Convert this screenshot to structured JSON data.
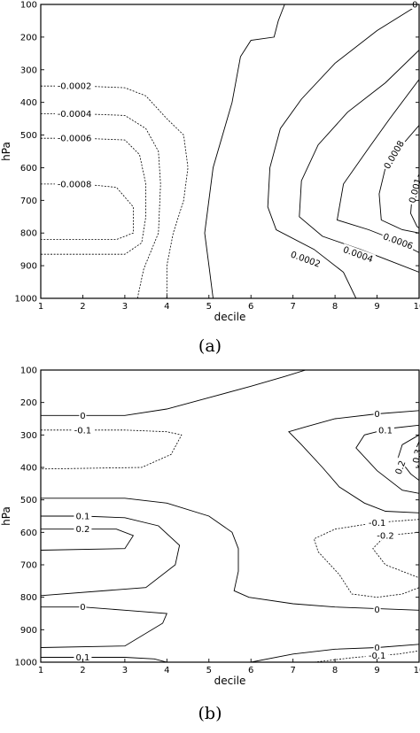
{
  "chart_data": [
    {
      "type": "contour",
      "panel_label": "(a)",
      "xlabel": "decile",
      "ylabel": "hPa",
      "x_ticks": [
        "1",
        "2",
        "3",
        "4",
        "5",
        "6",
        "7",
        "8",
        "9",
        "10"
      ],
      "y_ticks": [
        "100",
        "200",
        "300",
        "400",
        "500",
        "600",
        "700",
        "800",
        "900",
        "1000"
      ],
      "xlim": [
        1,
        10
      ],
      "ylim": [
        1000,
        100
      ],
      "y_inverted": true,
      "contours": [
        {
          "level": "-0.0002",
          "dashed": true,
          "points": [
            [
              1,
              350
            ],
            [
              2,
              350
            ],
            [
              3,
              355
            ],
            [
              3.5,
              380
            ],
            [
              4,
              450
            ],
            [
              4.4,
              500
            ],
            [
              4.5,
              600
            ],
            [
              4.4,
              700
            ],
            [
              4.15,
              800
            ],
            [
              4,
              900
            ],
            [
              4,
              1000
            ]
          ]
        },
        {
          "level": "-0.0004",
          "dashed": true,
          "points": [
            [
              1,
              435
            ],
            [
              2,
              435
            ],
            [
              3,
              440
            ],
            [
              3.5,
              480
            ],
            [
              3.8,
              550
            ],
            [
              3.85,
              650
            ],
            [
              3.8,
              800
            ],
            [
              3.45,
              910
            ],
            [
              3.3,
              1000
            ]
          ]
        },
        {
          "level": "-0.0006",
          "dashed": true,
          "points": [
            [
              1,
              510
            ],
            [
              2,
              510
            ],
            [
              3,
              515
            ],
            [
              3.35,
              560
            ],
            [
              3.5,
              650
            ],
            [
              3.5,
              750
            ],
            [
              3.4,
              830
            ],
            [
              3,
              865
            ],
            [
              1,
              865
            ]
          ]
        },
        {
          "level": "-0.0008",
          "dashed": true,
          "points": [
            [
              1,
              650
            ],
            [
              2,
              650
            ],
            [
              2.8,
              660
            ],
            [
              3.2,
              720
            ],
            [
              3.2,
              800
            ],
            [
              2.8,
              820
            ],
            [
              1,
              820
            ]
          ]
        },
        {
          "level": "0",
          "dashed": false,
          "points": [
            [
              6.8,
              100
            ],
            [
              6.65,
              150
            ],
            [
              6.55,
              200
            ],
            [
              6,
              210
            ],
            [
              5.75,
              260
            ],
            [
              5.55,
              400
            ],
            [
              5.1,
              600
            ],
            [
              4.9,
              800
            ],
            [
              5,
              900
            ],
            [
              5.1,
              1000
            ]
          ]
        },
        {
          "level": "0.0002",
          "dashed": false,
          "points": [
            [
              10,
              100
            ],
            [
              9,
              180
            ],
            [
              8,
              280
            ],
            [
              7.2,
              390
            ],
            [
              6.7,
              480
            ],
            [
              6.45,
              600
            ],
            [
              6.4,
              720
            ],
            [
              6.6,
              790
            ],
            [
              7.5,
              850
            ],
            [
              8.2,
              920
            ],
            [
              8.5,
              1000
            ]
          ]
        },
        {
          "level": "0.0004",
          "dashed": false,
          "points": [
            [
              10,
              240
            ],
            [
              9.2,
              340
            ],
            [
              8.3,
              430
            ],
            [
              7.6,
              530
            ],
            [
              7.2,
              640
            ],
            [
              7.15,
              750
            ],
            [
              7.7,
              810
            ],
            [
              8.6,
              850
            ],
            [
              9.2,
              880
            ],
            [
              10,
              920
            ]
          ]
        },
        {
          "level": "0.0006",
          "dashed": false,
          "points": [
            [
              10,
              330
            ],
            [
              9.3,
              450
            ],
            [
              8.8,
              540
            ],
            [
              8.2,
              650
            ],
            [
              8.05,
              760
            ],
            [
              8.8,
              790
            ],
            [
              9.4,
              820
            ],
            [
              10,
              860
            ]
          ]
        },
        {
          "level": "0.0008",
          "dashed": false,
          "points": [
            [
              10,
              470
            ],
            [
              9.6,
              530
            ],
            [
              9.2,
              600
            ],
            [
              9.05,
              680
            ],
            [
              9.1,
              760
            ],
            [
              9.6,
              790
            ],
            [
              10,
              800
            ]
          ]
        },
        {
          "level": "0.001",
          "dashed": false,
          "points": [
            [
              10,
              620
            ],
            [
              9.85,
              660
            ],
            [
              9.8,
              740
            ],
            [
              9.95,
              780
            ],
            [
              10,
              785
            ]
          ]
        }
      ],
      "labels": [
        {
          "text": "-0.0002",
          "x": 1.8,
          "p": 350
        },
        {
          "text": "-0.0004",
          "x": 1.8,
          "p": 435
        },
        {
          "text": "-0.0006",
          "x": 1.8,
          "p": 510
        },
        {
          "text": "-0.0008",
          "x": 1.8,
          "p": 650
        },
        {
          "text": "0.0008",
          "x": 9.4,
          "p": 560,
          "angle": -60
        },
        {
          "text": "0.0006",
          "x": 9.5,
          "p": 825,
          "angle": 20
        },
        {
          "text": "0.0004",
          "x": 8.55,
          "p": 865,
          "angle": 20
        },
        {
          "text": "0.0002",
          "x": 7.3,
          "p": 880,
          "angle": 20
        },
        {
          "text": "0.001",
          "x": 9.9,
          "p": 670,
          "angle": -75
        },
        {
          "text": "0",
          "x": 9.9,
          "p": 100
        }
      ]
    },
    {
      "type": "contour",
      "panel_label": "(b)",
      "xlabel": "decile",
      "ylabel": "hPa",
      "x_ticks": [
        "1",
        "2",
        "3",
        "4",
        "5",
        "6",
        "7",
        "8",
        "9",
        "10"
      ],
      "y_ticks": [
        "100",
        "200",
        "300",
        "400",
        "500",
        "600",
        "700",
        "800",
        "900",
        "1000"
      ],
      "xlim": [
        1,
        10
      ],
      "ylim": [
        1000,
        100
      ],
      "y_inverted": true,
      "contours": [
        {
          "level": "0",
          "dashed": false,
          "points": [
            [
              1,
              240
            ],
            [
              2,
              240
            ],
            [
              3,
              240
            ],
            [
              4,
              220
            ],
            [
              5,
              185
            ],
            [
              6,
              150
            ],
            [
              6.8,
              120
            ],
            [
              7.3,
              100
            ]
          ]
        },
        {
          "level": "-0.1",
          "dashed": true,
          "points": [
            [
              1,
              285
            ],
            [
              2,
              285
            ],
            [
              3,
              285
            ],
            [
              4,
              290
            ],
            [
              4.35,
              300
            ],
            [
              4.1,
              360
            ],
            [
              3.4,
              400
            ],
            [
              1,
              405
            ]
          ]
        },
        {
          "level": "0",
          "dashed": false,
          "points": [
            [
              1,
              495
            ],
            [
              2,
              495
            ],
            [
              3,
              495
            ],
            [
              4,
              510
            ],
            [
              5,
              550
            ],
            [
              5.55,
              600
            ],
            [
              5.7,
              650
            ],
            [
              5.7,
              720
            ],
            [
              5.6,
              780
            ],
            [
              5.95,
              800
            ],
            [
              7,
              820
            ],
            [
              8,
              830
            ],
            [
              10,
              840
            ]
          ]
        },
        {
          "level": "0.1",
          "dashed": false,
          "points": [
            [
              1,
              550
            ],
            [
              2,
              550
            ],
            [
              3,
              555
            ],
            [
              3.8,
              580
            ],
            [
              4.3,
              640
            ],
            [
              4.2,
              700
            ],
            [
              3.5,
              770
            ],
            [
              1,
              795
            ]
          ]
        },
        {
          "level": "0.2",
          "dashed": false,
          "points": [
            [
              1,
              590
            ],
            [
              2,
              590
            ],
            [
              2.8,
              590
            ],
            [
              3.2,
              610
            ],
            [
              3,
              650
            ],
            [
              1,
              655
            ]
          ]
        },
        {
          "level": "0",
          "dashed": false,
          "points": [
            [
              1,
              830
            ],
            [
              2,
              830
            ],
            [
              3,
              840
            ],
            [
              4,
              850
            ],
            [
              3.9,
              880
            ],
            [
              3,
              950
            ],
            [
              1,
              955
            ]
          ]
        },
        {
          "level": "0.1",
          "dashed": false,
          "points": [
            [
              1,
              985
            ],
            [
              2,
              985
            ],
            [
              3,
              985
            ],
            [
              3.7,
              990
            ],
            [
              4,
              1000
            ]
          ]
        },
        {
          "level": "0",
          "dashed": false,
          "points": [
            [
              6,
              1000
            ],
            [
              7,
              975
            ],
            [
              8,
              960
            ],
            [
              9,
              955
            ],
            [
              10,
              945
            ]
          ]
        },
        {
          "level": "-0.1",
          "dashed": true,
          "points": [
            [
              7.5,
              1000
            ],
            [
              8.5,
              985
            ],
            [
              9.5,
              975
            ],
            [
              10,
              965
            ]
          ]
        },
        {
          "level": "0",
          "dashed": false,
          "points": [
            [
              10,
              225
            ],
            [
              9,
              235
            ],
            [
              8,
              250
            ],
            [
              7.3,
              275
            ],
            [
              6.9,
              290
            ],
            [
              7.2,
              330
            ],
            [
              7.7,
              400
            ],
            [
              8.1,
              460
            ],
            [
              8.7,
              510
            ],
            [
              9.2,
              535
            ],
            [
              10,
              540
            ]
          ]
        },
        {
          "level": "0.1",
          "dashed": false,
          "points": [
            [
              10,
              270
            ],
            [
              9.3,
              280
            ],
            [
              8.7,
              300
            ],
            [
              8.5,
              340
            ],
            [
              9,
              410
            ],
            [
              9.6,
              470
            ],
            [
              10,
              480
            ]
          ]
        },
        {
          "level": "0.2",
          "dashed": false,
          "points": [
            [
              10,
              300
            ],
            [
              9.6,
              330
            ],
            [
              9.5,
              370
            ],
            [
              9.8,
              420
            ],
            [
              10,
              440
            ]
          ]
        },
        {
          "level": "0.3",
          "dashed": false,
          "points": [
            [
              10,
              320
            ],
            [
              9.9,
              350
            ],
            [
              9.95,
              390
            ],
            [
              10,
              400
            ]
          ]
        },
        {
          "level": "-0.1",
          "dashed": true,
          "points": [
            [
              10,
              560
            ],
            [
              9,
              570
            ],
            [
              8,
              590
            ],
            [
              7.5,
              620
            ],
            [
              7.6,
              660
            ],
            [
              8.1,
              730
            ],
            [
              8.4,
              790
            ],
            [
              9,
              800
            ],
            [
              9.6,
              790
            ],
            [
              10,
              770
            ]
          ]
        },
        {
          "level": "-0.2",
          "dashed": true,
          "points": [
            [
              10,
              600
            ],
            [
              9.2,
              610
            ],
            [
              8.9,
              650
            ],
            [
              9.2,
              700
            ],
            [
              9.8,
              730
            ],
            [
              10,
              740
            ]
          ]
        }
      ],
      "labels": [
        {
          "text": "0",
          "x": 2.0,
          "p": 240
        },
        {
          "text": "-0.1",
          "x": 2.0,
          "p": 285
        },
        {
          "text": "0.1",
          "x": 2.0,
          "p": 550
        },
        {
          "text": "0.2",
          "x": 2.0,
          "p": 590
        },
        {
          "text": "0",
          "x": 2.0,
          "p": 830
        },
        {
          "text": "0.1",
          "x": 2.0,
          "p": 985
        },
        {
          "text": "0",
          "x": 9.0,
          "p": 235
        },
        {
          "text": "0.1",
          "x": 9.2,
          "p": 285
        },
        {
          "text": "0.2",
          "x": 9.55,
          "p": 400,
          "angle": -70
        },
        {
          "text": "0.3",
          "x": 9.95,
          "p": 365,
          "angle": -80
        },
        {
          "text": "-0.1",
          "x": 9.0,
          "p": 570
        },
        {
          "text": "-0.2",
          "x": 9.2,
          "p": 610
        },
        {
          "text": "0",
          "x": 9.0,
          "p": 838
        },
        {
          "text": "0",
          "x": 9.0,
          "p": 955
        },
        {
          "text": "-0.1",
          "x": 9.0,
          "p": 980
        }
      ]
    }
  ]
}
